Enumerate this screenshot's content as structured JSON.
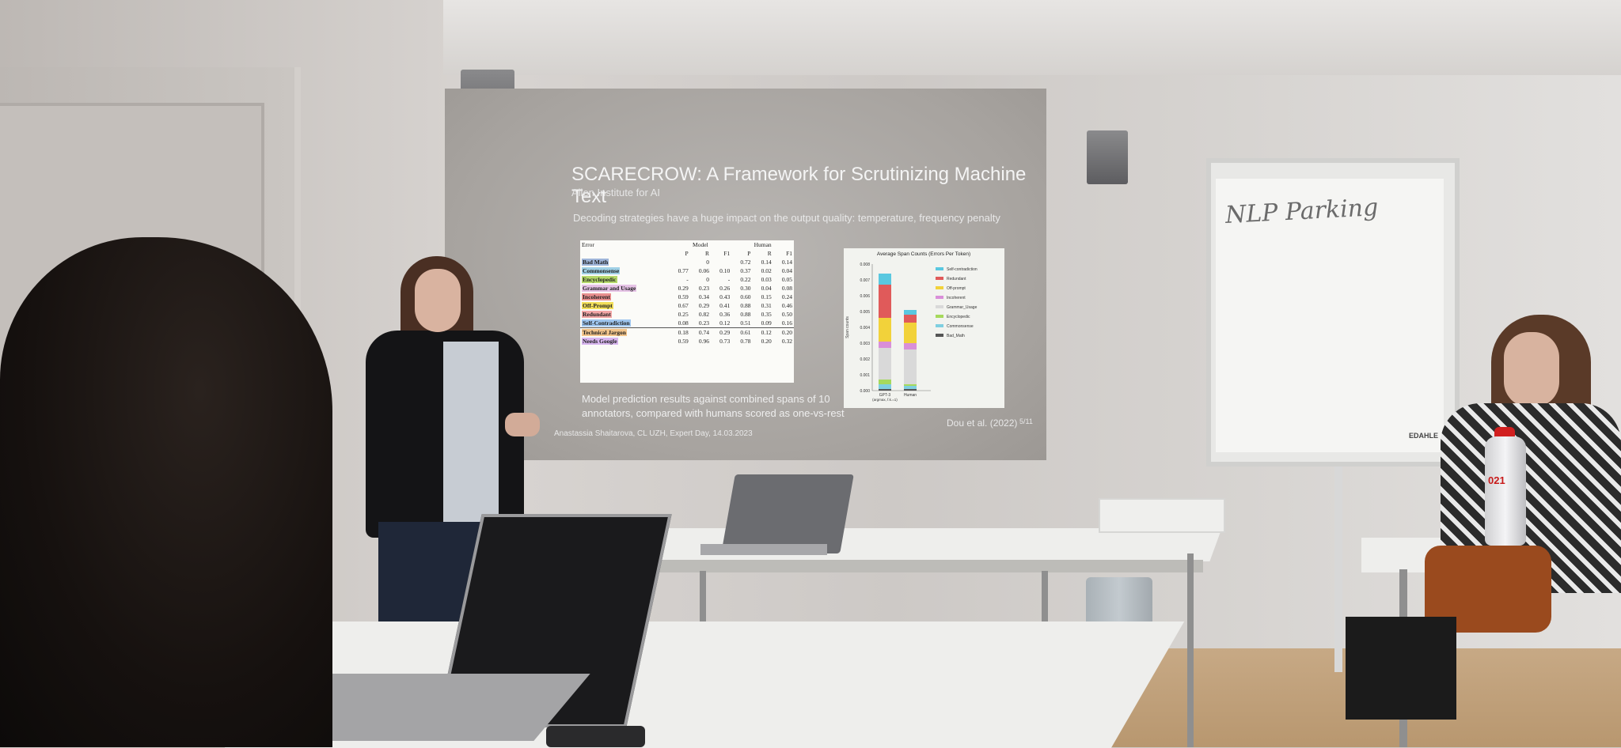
{
  "slide": {
    "title": "SCARECROW: A Framework for Scrutinizing Machine Text",
    "institution": "Allen Institute for AI",
    "subtitle": "Decoding strategies have a huge impact on the output quality: temperature, frequency penalty",
    "table": {
      "headers": [
        "Error",
        "Model",
        "Human"
      ],
      "subheaders": [
        "P",
        "R",
        "F1",
        "P",
        "R",
        "F1"
      ],
      "rows": [
        {
          "label": "Bad Math",
          "color": "#9fb5d9",
          "values": [
            "",
            "0",
            "",
            "0.72",
            "0.14",
            "0.14"
          ]
        },
        {
          "label": "Commonsense",
          "color": "#9fd0e6",
          "values": [
            "0.77",
            "0.06",
            "0.10",
            "0.37",
            "0.02",
            "0.04"
          ]
        },
        {
          "label": "Encyclopedic",
          "color": "#b5d96a",
          "values": [
            "-",
            "0",
            "-",
            "0.22",
            "0.03",
            "0.05"
          ]
        },
        {
          "label": "Grammar and Usage",
          "color": "#e6c3e6",
          "values": [
            "0.29",
            "0.23",
            "0.26",
            "0.30",
            "0.04",
            "0.08"
          ]
        },
        {
          "label": "Incoherent",
          "color": "#e88f8f",
          "values": [
            "0.59",
            "0.34",
            "0.43",
            "0.60",
            "0.15",
            "0.24"
          ]
        },
        {
          "label": "Off-Prompt",
          "color": "#f2df5a",
          "values": [
            "0.67",
            "0.29",
            "0.41",
            "0.88",
            "0.31",
            "0.46"
          ]
        },
        {
          "label": "Redundant",
          "color": "#f2a6a6",
          "values": [
            "0.25",
            "0.82",
            "0.36",
            "0.88",
            "0.35",
            "0.50"
          ]
        },
        {
          "label": "Self-Contradiction",
          "color": "#9fc6ef",
          "values": [
            "0.08",
            "0.23",
            "0.12",
            "0.51",
            "0.09",
            "0.16"
          ]
        },
        {
          "label": "Technical Jargon",
          "color": "#f2c48a",
          "values": [
            "0.18",
            "0.74",
            "0.29",
            "0.61",
            "0.12",
            "0.20"
          ]
        },
        {
          "label": "Needs Google",
          "color": "#d8b6ef",
          "values": [
            "0.59",
            "0.96",
            "0.73",
            "0.78",
            "0.20",
            "0.32"
          ]
        }
      ]
    },
    "caption": "Model prediction results against combined spans of 10 annotators, compared with humans scored as one-vs-rest",
    "author": "Anastassia Shaitarova, CL UZH, Expert Day, 14.03.2023",
    "citation": "Dou et al. (2022)",
    "page": "5/11"
  },
  "chart_data": {
    "type": "bar",
    "title": "Average Span Counts (Errors Per Token)",
    "ylabel": "Span counts",
    "categories": [
      "GPT-3 (argmax, f.k.=1)",
      "Human"
    ],
    "ylim": [
      0,
      0.008
    ],
    "yticks": [
      "0.000",
      "0.001",
      "0.002",
      "0.003",
      "0.004",
      "0.005",
      "0.006",
      "0.007",
      "0.008"
    ],
    "series": [
      {
        "name": "Bad_Math",
        "color": "#555555",
        "values": [
          0.0001,
          0.0001
        ]
      },
      {
        "name": "Commonsense",
        "color": "#7fcfe0",
        "values": [
          0.0003,
          0.0002
        ]
      },
      {
        "name": "Encyclopedic",
        "color": "#a6d95c",
        "values": [
          0.0003,
          0.0001
        ]
      },
      {
        "name": "Grammar_Usage",
        "color": "#d9d9d9",
        "values": [
          0.002,
          0.0022
        ]
      },
      {
        "name": "Incoherent",
        "color": "#d98fd9",
        "values": [
          0.0004,
          0.0004
        ]
      },
      {
        "name": "Off-prompt",
        "color": "#f2d23a",
        "values": [
          0.0015,
          0.0013
        ]
      },
      {
        "name": "Redundant",
        "color": "#e05a5a",
        "values": [
          0.0021,
          0.0005
        ]
      },
      {
        "name": "Self-contradiction",
        "color": "#5ac8e0",
        "values": [
          0.0007,
          0.0003
        ]
      }
    ]
  },
  "flipchart": {
    "text": "NLP Parking",
    "brand": "EDAHLE"
  },
  "bottle": {
    "label": "021"
  }
}
